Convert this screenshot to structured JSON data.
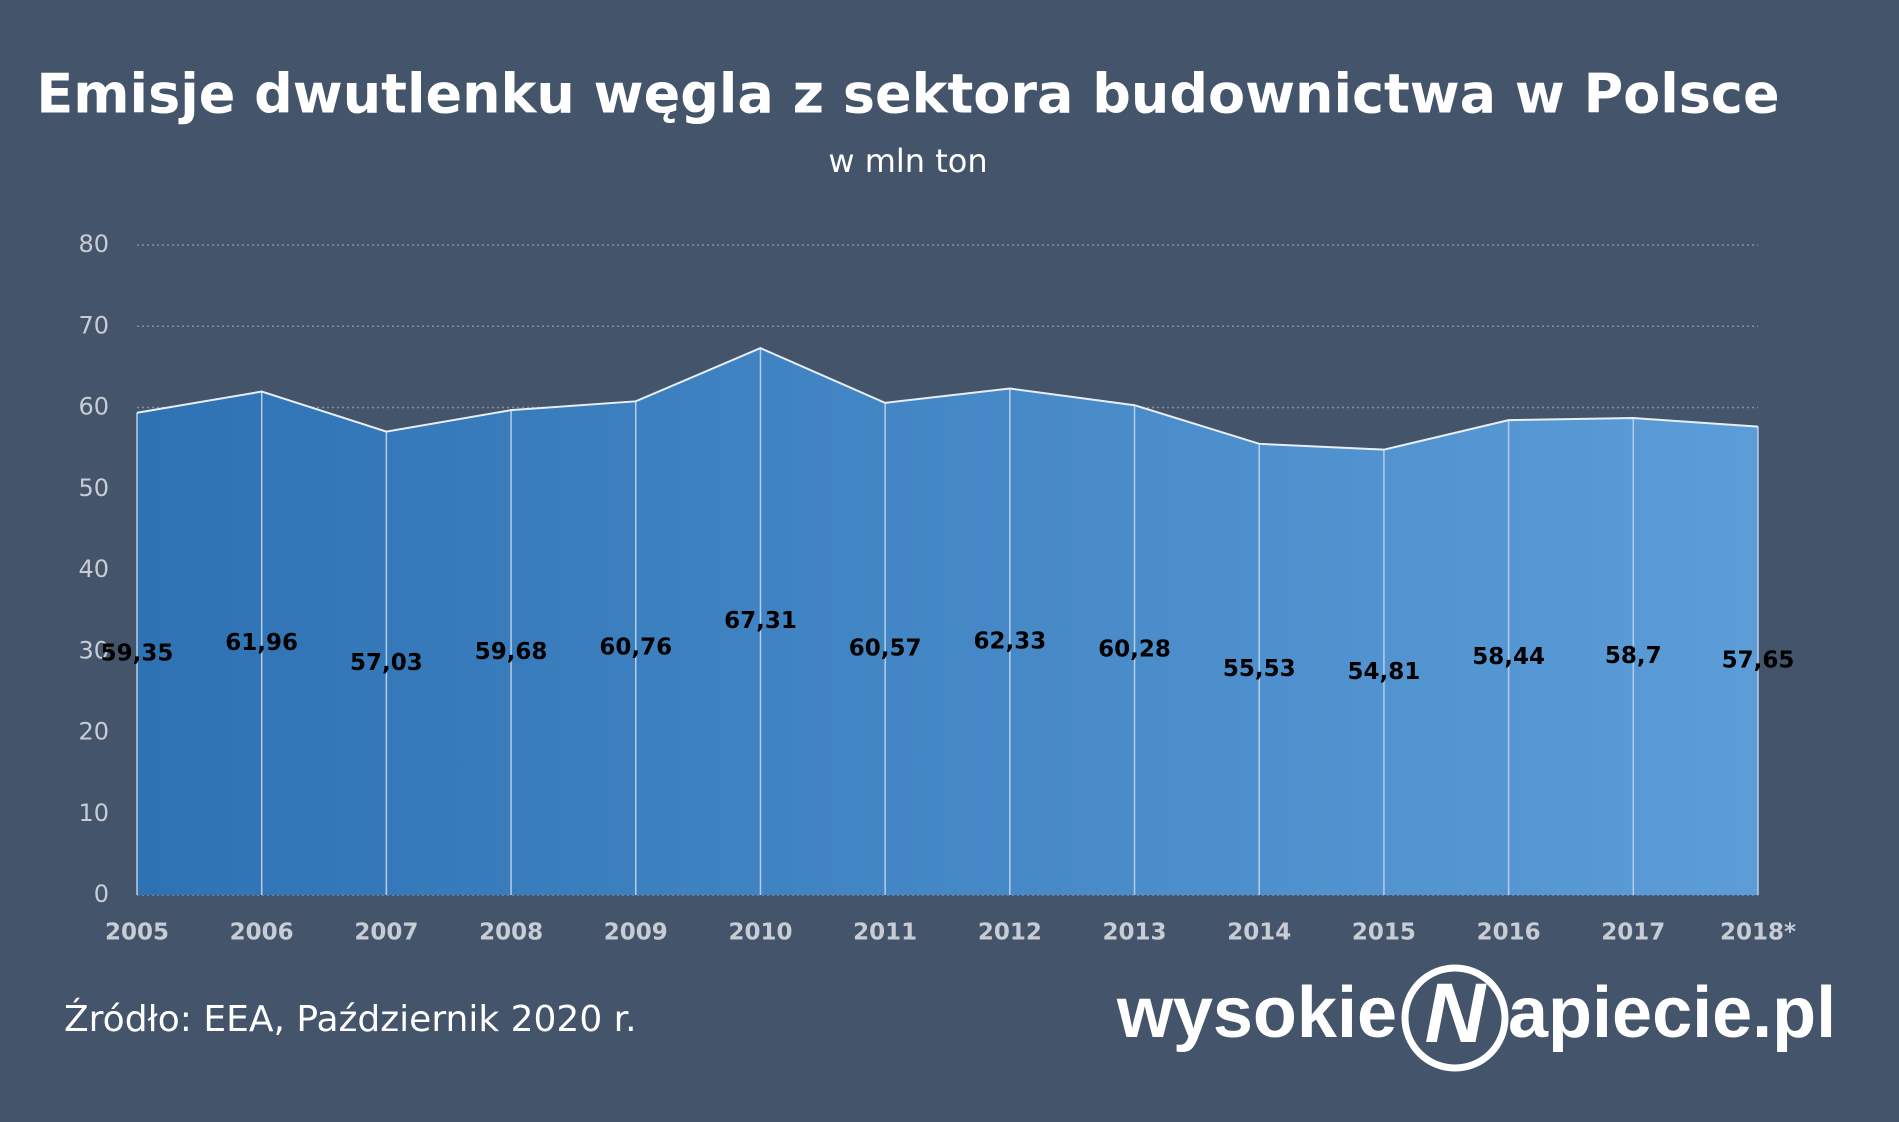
{
  "chart_data": {
    "type": "area",
    "title": "Emisje dwutlenku węgla z sektora budownictwa w Polsce",
    "subtitle": "w mln ton",
    "categories": [
      "2005",
      "2006",
      "2007",
      "2008",
      "2009",
      "2010",
      "2011",
      "2012",
      "2013",
      "2014",
      "2015",
      "2016",
      "2017",
      "2018*"
    ],
    "values": [
      59.35,
      61.96,
      57.03,
      59.68,
      60.76,
      67.31,
      60.57,
      62.33,
      60.28,
      55.53,
      54.81,
      58.44,
      58.7,
      57.65
    ],
    "value_labels": [
      "59,35",
      "61,96",
      "57,03",
      "59,68",
      "60,76",
      "67,31",
      "60,57",
      "62,33",
      "60,28",
      "55,53",
      "54,81",
      "58,44",
      "58,7",
      "57,65"
    ],
    "color": "#3f84c6",
    "ylim": [
      0,
      80
    ],
    "yticks": [
      0,
      10,
      20,
      30,
      40,
      50,
      60,
      70,
      80
    ],
    "grid": true
  },
  "source": "Źródło: EEA, Październik 2020 r.",
  "logo": {
    "left": "wysokie",
    "mark": "N",
    "right": "apiecie.pl"
  }
}
